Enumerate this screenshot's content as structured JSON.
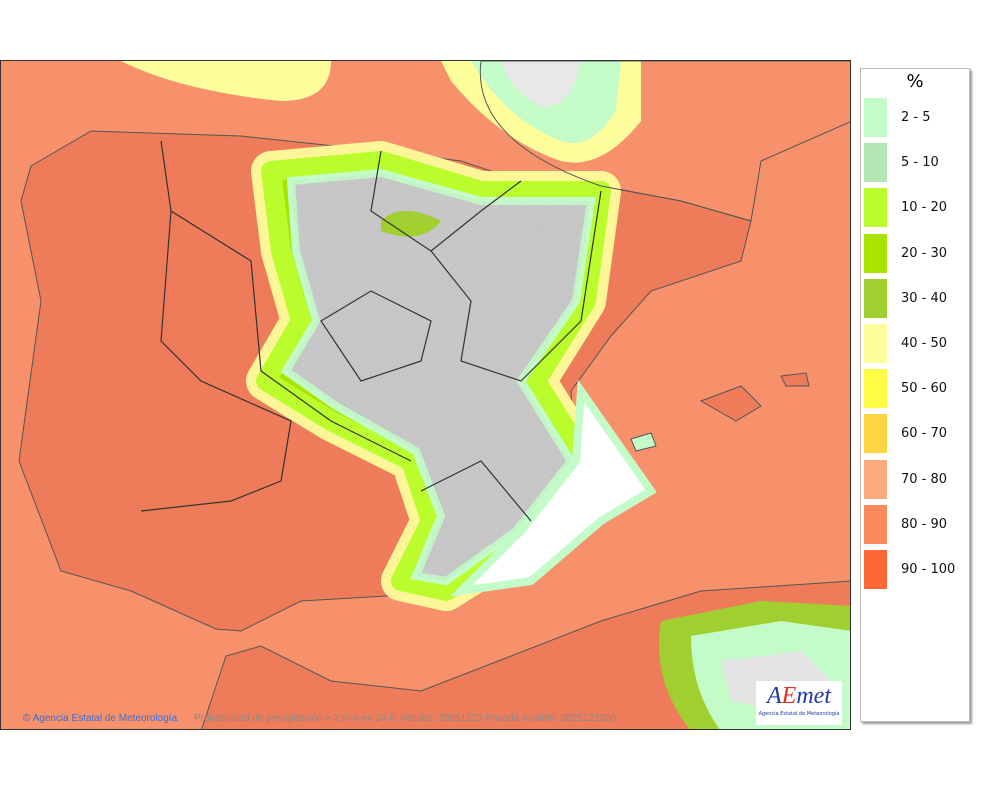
{
  "map": {
    "credit": "© Agencia Estatal de Meteorología",
    "caption": "Probabilidad de precipitación > 2 mm en 24 h. Validez: 20251223 Pasada modelo: 2025122300",
    "logo": {
      "text": "AEmet",
      "subtitle": "Agencia Estatal de Meteorología"
    }
  },
  "legend": {
    "title": "%",
    "items": [
      {
        "label": "2 - 5",
        "color": "#c4fcc9"
      },
      {
        "label": "5 - 10",
        "color": "#b2e6b2"
      },
      {
        "label": "10 - 20",
        "color": "#bafc2c"
      },
      {
        "label": "20 - 30",
        "color": "#a8e400"
      },
      {
        "label": "30 - 40",
        "color": "#a0d030"
      },
      {
        "label": "40 - 50",
        "color": "#fefd9c"
      },
      {
        "label": "50 - 60",
        "color": "#fefc44"
      },
      {
        "label": "60 - 70",
        "color": "#fed440"
      },
      {
        "label": "70 - 80",
        "color": "#fdaa7c"
      },
      {
        "label": "80 - 90",
        "color": "#fd8a5c"
      },
      {
        "label": "90 - 100",
        "color": "#fe6834"
      }
    ]
  }
}
